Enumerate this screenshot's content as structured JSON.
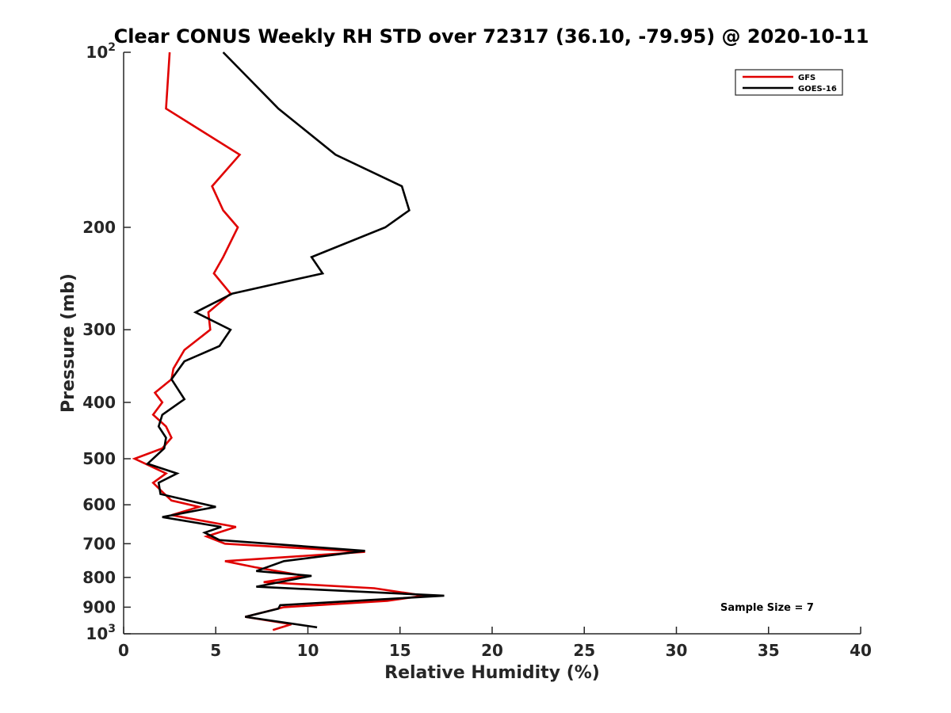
{
  "chart_data": {
    "type": "line",
    "title": "Clear CONUS Weekly RH STD over 72317 (36.10, -79.95) @ 2020-10-11",
    "xlabel": "Relative Humidity (%)",
    "ylabel": "Pressure (mb)",
    "xlim": [
      0,
      40
    ],
    "ylim": [
      100,
      1000
    ],
    "y_scale": "log",
    "y_reversed": true,
    "x_ticks": [
      0,
      5,
      10,
      15,
      20,
      25,
      30,
      35,
      40
    ],
    "x_tick_labels": [
      "0",
      "5",
      "10",
      "15",
      "20",
      "25",
      "30",
      "35",
      "40"
    ],
    "y_ticks": [
      100,
      200,
      300,
      400,
      500,
      600,
      700,
      800,
      900,
      1000
    ],
    "y_tick_labels": [
      {
        "base": "10",
        "exp": "2"
      },
      {
        "base": "200"
      },
      {
        "base": "300"
      },
      {
        "base": "400"
      },
      {
        "base": "500"
      },
      {
        "base": "600"
      },
      {
        "base": "700"
      },
      {
        "base": "800"
      },
      {
        "base": "900"
      },
      {
        "base": "10",
        "exp": "3"
      }
    ],
    "grid": false,
    "legend_position": "top-right",
    "series": [
      {
        "name": "GFS",
        "color": "#e00000",
        "points": [
          [
            2.5,
            100
          ],
          [
            2.3,
            125
          ],
          [
            6.3,
            150
          ],
          [
            4.8,
            170
          ],
          [
            5.4,
            187
          ],
          [
            6.2,
            200
          ],
          [
            5.4,
            225
          ],
          [
            4.9,
            240
          ],
          [
            5.8,
            260
          ],
          [
            4.6,
            280
          ],
          [
            4.7,
            300
          ],
          [
            3.3,
            325
          ],
          [
            2.7,
            350
          ],
          [
            2.6,
            365
          ],
          [
            1.7,
            385
          ],
          [
            2.1,
            400
          ],
          [
            1.6,
            420
          ],
          [
            2.3,
            440
          ],
          [
            2.6,
            460
          ],
          [
            2.1,
            480
          ],
          [
            0.6,
            500
          ],
          [
            2.3,
            530
          ],
          [
            1.6,
            550
          ],
          [
            2.1,
            570
          ],
          [
            2.6,
            590
          ],
          [
            4.1,
            605
          ],
          [
            2.6,
            625
          ],
          [
            6.1,
            655
          ],
          [
            4.5,
            680
          ],
          [
            5.5,
            700
          ],
          [
            13.1,
            723
          ],
          [
            5.5,
            750
          ],
          [
            7.1,
            768
          ],
          [
            9.8,
            795
          ],
          [
            7.6,
            815
          ],
          [
            13.6,
            835
          ],
          [
            16.3,
            860
          ],
          [
            14.3,
            878
          ],
          [
            8.7,
            900
          ],
          [
            6.6,
            935
          ],
          [
            9.1,
            963
          ],
          [
            8.1,
            985
          ]
        ]
      },
      {
        "name": "GOES-16",
        "color": "#000000",
        "points": [
          [
            5.4,
            100
          ],
          [
            8.4,
            125
          ],
          [
            11.5,
            150
          ],
          [
            15.1,
            170
          ],
          [
            15.5,
            187
          ],
          [
            14.2,
            200
          ],
          [
            10.2,
            225
          ],
          [
            10.8,
            240
          ],
          [
            5.9,
            260
          ],
          [
            3.9,
            280
          ],
          [
            5.8,
            300
          ],
          [
            5.2,
            320
          ],
          [
            3.3,
            340
          ],
          [
            2.6,
            365
          ],
          [
            3.3,
            395
          ],
          [
            2.1,
            420
          ],
          [
            1.9,
            440
          ],
          [
            2.3,
            460
          ],
          [
            2.2,
            480
          ],
          [
            1.3,
            510
          ],
          [
            2.9,
            530
          ],
          [
            1.9,
            550
          ],
          [
            2.0,
            575
          ],
          [
            5.0,
            605
          ],
          [
            2.1,
            630
          ],
          [
            5.3,
            655
          ],
          [
            4.4,
            670
          ],
          [
            5.2,
            690
          ],
          [
            13.1,
            720
          ],
          [
            8.7,
            750
          ],
          [
            7.2,
            780
          ],
          [
            10.2,
            795
          ],
          [
            7.2,
            830
          ],
          [
            17.4,
            860
          ],
          [
            8.5,
            893
          ],
          [
            8.4,
            905
          ],
          [
            6.6,
            935
          ],
          [
            10.5,
            975
          ]
        ]
      }
    ],
    "annotations": [
      "Sample Size = 7"
    ]
  }
}
